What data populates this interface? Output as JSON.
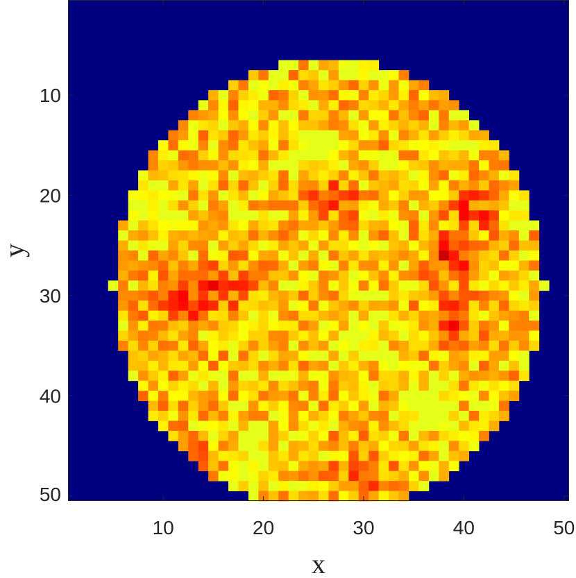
{
  "chart_data": {
    "type": "heatmap",
    "title": "",
    "xlabel": "x",
    "ylabel": "y",
    "xlim": [
      0.5,
      50.5
    ],
    "ylim": [
      0.5,
      50.5
    ],
    "y_direction": "reversed",
    "xticks": [
      10,
      20,
      30,
      40,
      50
    ],
    "yticks": [
      10,
      20,
      30,
      40,
      50
    ],
    "xtick_labels": [
      "10",
      "20",
      "30",
      "40",
      "50"
    ],
    "ytick_labels": [
      "10",
      "20",
      "30",
      "40",
      "50"
    ],
    "grid_size": [
      50,
      50
    ],
    "colormap": "jet",
    "background_color": "#000080",
    "region": {
      "shape": "ellipse",
      "center_x": 26.5,
      "center_y": 29.0,
      "radius_x": 21.5,
      "radius_y": 22.5,
      "outside_value": 0.0,
      "inside_value_range": [
        0.6,
        0.95
      ],
      "typical_value": 0.78
    },
    "hot_spots": [
      {
        "x": 16,
        "y": 29,
        "value": 0.93
      },
      {
        "x": 39,
        "y": 26,
        "value": 0.95
      },
      {
        "x": 39,
        "y": 33,
        "value": 0.94
      },
      {
        "x": 12,
        "y": 31,
        "value": 0.9
      },
      {
        "x": 12,
        "y": 47,
        "value": 0.9
      },
      {
        "x": 30,
        "y": 48,
        "value": 0.92
      },
      {
        "x": 27,
        "y": 20,
        "value": 0.9
      },
      {
        "x": 41,
        "y": 21,
        "value": 0.9
      }
    ],
    "cool_spots": [
      {
        "x": 37,
        "y": 41,
        "value": 0.62
      },
      {
        "x": 30,
        "y": 34,
        "value": 0.63
      },
      {
        "x": 25,
        "y": 16,
        "value": 0.64
      },
      {
        "x": 9,
        "y": 21,
        "value": 0.64
      },
      {
        "x": 19,
        "y": 45,
        "value": 0.65
      },
      {
        "x": 42,
        "y": 11,
        "value": 0.66
      }
    ]
  }
}
